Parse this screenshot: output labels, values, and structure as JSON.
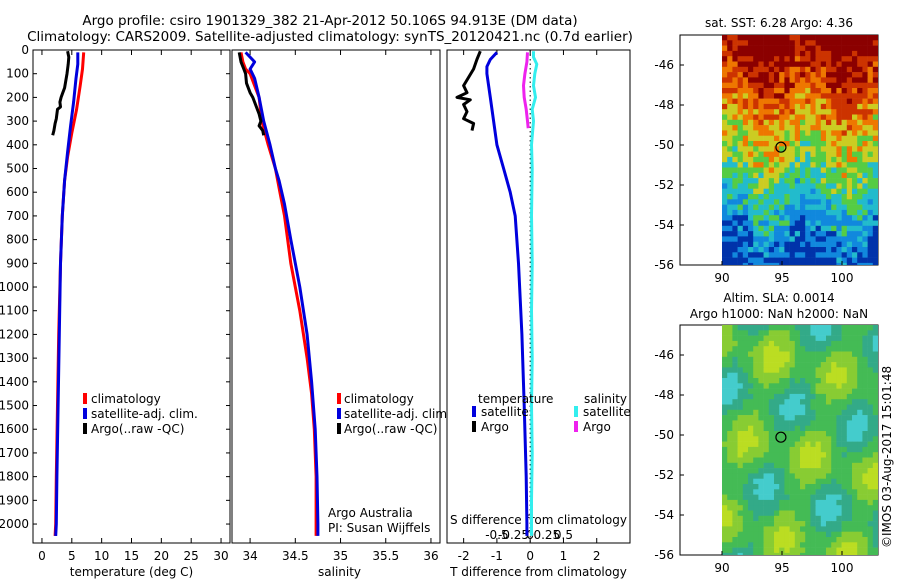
{
  "header": {
    "line1": "Argo profile: csiro 1901329_382 21-Apr-2012 50.106S 94.913E (DM data)",
    "line2": "Climatology: CARS2009. Satellite-adjusted climatology: synTS_20120421.nc (0.7d earlier)"
  },
  "colors": {
    "climatology": "#ff0000",
    "satellite": "#0000dd",
    "argo": "#000000",
    "sat_salinity": "#33eeee",
    "argo_salinity": "#ee22ee",
    "grid": "#000000"
  },
  "chart_data": [
    {
      "type": "line",
      "id": "temperature",
      "xlabel": "temperature (deg C)",
      "xlim": [
        -1.5,
        31.5
      ],
      "ylim": [
        2080,
        0
      ],
      "y_reversed": true,
      "xticks": [
        0,
        5,
        10,
        15,
        20,
        25,
        30
      ],
      "yticks": [
        0,
        100,
        200,
        300,
        400,
        500,
        600,
        700,
        800,
        900,
        1000,
        1100,
        1200,
        1300,
        1400,
        1500,
        1600,
        1700,
        1800,
        1900,
        2000
      ],
      "legend": [
        "climatology",
        "satellite-adj. clim.",
        "Argo(..raw -QC)"
      ],
      "series": [
        {
          "name": "climatology",
          "color": "#ff0000",
          "points": [
            [
              7.0,
              10
            ],
            [
              6.8,
              80
            ],
            [
              6.4,
              150
            ],
            [
              5.8,
              250
            ],
            [
              5.0,
              350
            ],
            [
              4.3,
              450
            ],
            [
              3.8,
              550
            ],
            [
              3.4,
              700
            ],
            [
              3.1,
              900
            ],
            [
              2.8,
              1200
            ],
            [
              2.6,
              1500
            ],
            [
              2.4,
              1800
            ],
            [
              2.3,
              2000
            ],
            [
              2.2,
              2050
            ]
          ]
        },
        {
          "name": "satellite-adj. clim.",
          "color": "#0000dd",
          "points": [
            [
              6.0,
              10
            ],
            [
              6.0,
              60
            ],
            [
              5.7,
              120
            ],
            [
              5.3,
              220
            ],
            [
              4.8,
              320
            ],
            [
              4.3,
              430
            ],
            [
              3.8,
              550
            ],
            [
              3.4,
              700
            ],
            [
              3.1,
              900
            ],
            [
              2.9,
              1200
            ],
            [
              2.7,
              1500
            ],
            [
              2.5,
              1800
            ],
            [
              2.4,
              2000
            ],
            [
              2.3,
              2050
            ]
          ]
        },
        {
          "name": "Argo(..raw -QC)",
          "color": "#000000",
          "points": [
            [
              4.3,
              5
            ],
            [
              4.5,
              30
            ],
            [
              4.4,
              60
            ],
            [
              4.2,
              100
            ],
            [
              4.0,
              130
            ],
            [
              3.8,
              160
            ],
            [
              3.5,
              180
            ],
            [
              3.2,
              200
            ],
            [
              3.0,
              220
            ],
            [
              3.1,
              240
            ],
            [
              2.6,
              250
            ],
            [
              2.4,
              290
            ],
            [
              2.2,
              310
            ],
            [
              2.0,
              340
            ],
            [
              1.8,
              360
            ]
          ]
        }
      ]
    },
    {
      "type": "line",
      "id": "salinity",
      "xlabel": "salinity",
      "xlim": [
        33.8,
        36.1
      ],
      "ylim": [
        2080,
        0
      ],
      "y_reversed": true,
      "xticks": [
        34,
        34.5,
        35,
        35.5,
        36
      ],
      "legend": [
        "climatology",
        "satellite-adj. clim.",
        "Argo(..raw -QC)"
      ],
      "annotation": [
        "Argo Australia",
        "PI: Susan Wijffels"
      ],
      "series": [
        {
          "name": "climatology",
          "color": "#ff0000",
          "points": [
            [
              33.9,
              10
            ],
            [
              33.92,
              50
            ],
            [
              33.95,
              80
            ],
            [
              34.0,
              100
            ],
            [
              34.05,
              150
            ],
            [
              34.1,
              200
            ],
            [
              34.13,
              300
            ],
            [
              34.2,
              400
            ],
            [
              34.28,
              500
            ],
            [
              34.33,
              600
            ],
            [
              34.38,
              700
            ],
            [
              34.45,
              900
            ],
            [
              34.55,
              1100
            ],
            [
              34.63,
              1300
            ],
            [
              34.68,
              1450
            ],
            [
              34.71,
              1600
            ],
            [
              34.73,
              1800
            ],
            [
              34.73,
              2000
            ],
            [
              34.73,
              2050
            ]
          ]
        },
        {
          "name": "satellite-adj. clim.",
          "color": "#0000dd",
          "points": [
            [
              33.95,
              10
            ],
            [
              34.0,
              30
            ],
            [
              34.05,
              50
            ],
            [
              34.0,
              80
            ],
            [
              34.05,
              120
            ],
            [
              34.1,
              200
            ],
            [
              34.15,
              300
            ],
            [
              34.22,
              400
            ],
            [
              34.28,
              500
            ],
            [
              34.32,
              550
            ],
            [
              34.38,
              650
            ],
            [
              34.45,
              800
            ],
            [
              34.55,
              1000
            ],
            [
              34.63,
              1200
            ],
            [
              34.68,
              1400
            ],
            [
              34.72,
              1600
            ],
            [
              34.74,
              1800
            ],
            [
              34.75,
              2000
            ],
            [
              34.75,
              2050
            ]
          ]
        },
        {
          "name": "Argo(..raw -QC)",
          "color": "#000000",
          "points": [
            [
              33.88,
              10
            ],
            [
              33.9,
              50
            ],
            [
              33.93,
              80
            ],
            [
              33.95,
              100
            ],
            [
              33.96,
              140
            ],
            [
              34.0,
              180
            ],
            [
              34.03,
              200
            ],
            [
              34.06,
              230
            ],
            [
              34.1,
              270
            ],
            [
              34.12,
              300
            ],
            [
              34.1,
              320
            ],
            [
              34.14,
              340
            ],
            [
              34.15,
              360
            ]
          ]
        }
      ]
    },
    {
      "type": "line",
      "id": "difference",
      "xlabel": "T difference from climatology",
      "xlabel_top": "S difference from climatology",
      "xlim_T": [
        -2.5,
        3
      ],
      "xticks_T": [
        -2,
        -1,
        0,
        1,
        2
      ],
      "xticks_S": [
        -0.5,
        -0.25,
        0,
        0.25,
        0.5
      ],
      "S_scale": 2,
      "ylim": [
        2080,
        0
      ],
      "y_reversed": true,
      "legend_T": {
        "title": "temperature",
        "entries": [
          "satellite",
          "Argo"
        ]
      },
      "legend_S": {
        "title": "salinity",
        "entries": [
          "satellite",
          "Argo"
        ]
      },
      "series": [
        {
          "name": "T satellite",
          "color": "#0000dd",
          "points": [
            [
              -1.0,
              10
            ],
            [
              -1.2,
              40
            ],
            [
              -1.3,
              70
            ],
            [
              -1.3,
              100
            ],
            [
              -1.25,
              150
            ],
            [
              -1.2,
              200
            ],
            [
              -1.1,
              300
            ],
            [
              -1.0,
              400
            ],
            [
              -0.8,
              500
            ],
            [
              -0.6,
              600
            ],
            [
              -0.45,
              700
            ],
            [
              -0.35,
              900
            ],
            [
              -0.25,
              1200
            ],
            [
              -0.18,
              1500
            ],
            [
              -0.12,
              1800
            ],
            [
              -0.1,
              2000
            ],
            [
              -0.1,
              2050
            ]
          ]
        },
        {
          "name": "T Argo",
          "color": "#000000",
          "points": [
            [
              -1.5,
              5
            ],
            [
              -1.6,
              40
            ],
            [
              -1.7,
              80
            ],
            [
              -2.0,
              150
            ],
            [
              -1.9,
              180
            ],
            [
              -2.2,
              200
            ],
            [
              -1.8,
              210
            ],
            [
              -2.0,
              230
            ],
            [
              -1.9,
              260
            ],
            [
              -2.0,
              290
            ],
            [
              -1.7,
              310
            ],
            [
              -1.75,
              340
            ]
          ]
        },
        {
          "name": "S satellite",
          "color": "#33eeee",
          "points": [
            [
              0.05,
              5
            ],
            [
              0.05,
              30
            ],
            [
              0.1,
              60
            ],
            [
              0.07,
              100
            ],
            [
              0.05,
              150
            ],
            [
              0.08,
              200
            ],
            [
              0.03,
              250
            ],
            [
              0.05,
              300
            ],
            [
              0.02,
              400
            ],
            [
              0.03,
              500
            ],
            [
              0.02,
              700
            ],
            [
              0.03,
              900
            ],
            [
              0.02,
              1100
            ],
            [
              0.03,
              1300
            ],
            [
              0.02,
              1500
            ],
            [
              0.03,
              1700
            ],
            [
              0.02,
              1900
            ],
            [
              0.02,
              2050
            ]
          ]
        },
        {
          "name": "S Argo",
          "color": "#ee22ee",
          "points": [
            [
              -0.04,
              10
            ],
            [
              -0.05,
              50
            ],
            [
              -0.08,
              100
            ],
            [
              -0.1,
              150
            ],
            [
              -0.09,
              200
            ],
            [
              -0.06,
              250
            ],
            [
              -0.04,
              300
            ],
            [
              -0.03,
              330
            ]
          ]
        }
      ]
    },
    {
      "type": "heatmap",
      "id": "sst_map",
      "title": "sat. SST: 6.28 Argo: 4.36",
      "xlim": [
        86.5,
        103
      ],
      "ylim": [
        -56,
        -44.5
      ],
      "xticks": [
        90,
        95,
        100
      ],
      "yticks": [
        -46,
        -48,
        -50,
        -52,
        -54,
        -56
      ],
      "argo_location": [
        94.91,
        -50.11
      ],
      "colors": [
        "#8b0000",
        "#cc3300",
        "#ee7700",
        "#cccc22",
        "#55cc44",
        "#22bbcc",
        "#1188dd",
        "#0033aa"
      ]
    },
    {
      "type": "heatmap",
      "id": "sla_map",
      "title_line1": "Altim. SLA: 0.0014",
      "title_line2": "Argo h1000: NaN h2000: NaN",
      "xlim": [
        86.5,
        103
      ],
      "ylim": [
        -56,
        -44.5
      ],
      "xticks": [
        90,
        95,
        100
      ],
      "yticks": [
        -46,
        -48,
        -50,
        -52,
        -54,
        -56
      ],
      "argo_location": [
        94.91,
        -50.11
      ],
      "colors": [
        "#bbdd22",
        "#88cc33",
        "#44bb55",
        "#33aa88",
        "#44cccc"
      ]
    }
  ],
  "credit": "©IMOS 03-Aug-2017 15:01:48"
}
